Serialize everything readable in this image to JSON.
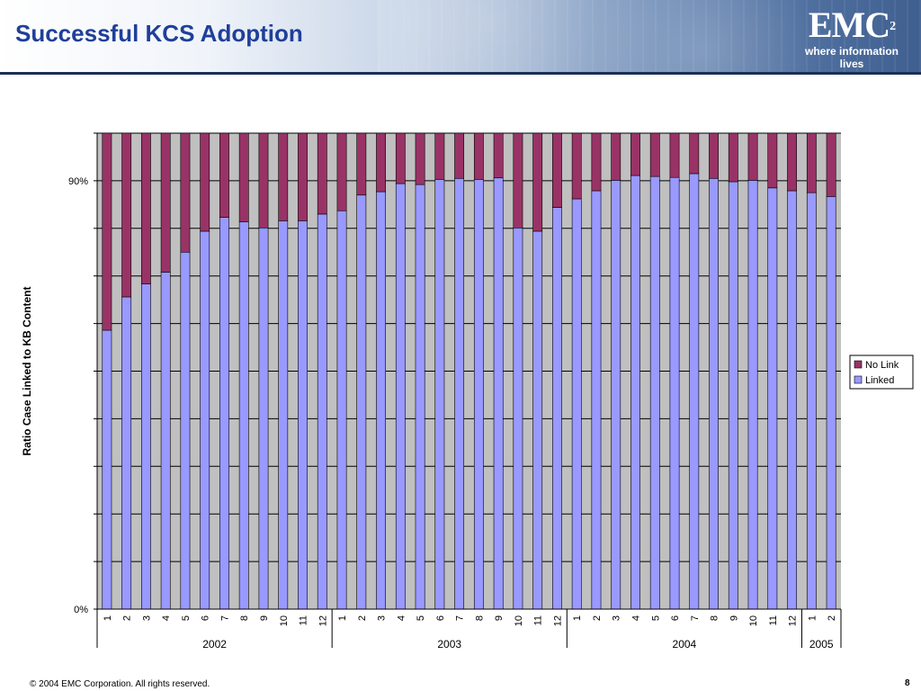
{
  "header": {
    "title": "Successful KCS Adoption",
    "logo_mark": "EMC",
    "logo_superscript": "2",
    "logo_tagline": "where information lives"
  },
  "footer": {
    "copyright": "© 2004 EMC Corporation. All rights reserved.",
    "page_number": "8"
  },
  "colors": {
    "plot_background": "#c0c0c0",
    "linked": "#9999ff",
    "no_link": "#993366",
    "header_text": "#1f3f99"
  },
  "chart_data": {
    "type": "bar",
    "stacked": true,
    "ylabel": "Ratio Case Linked to KB Content",
    "ylim": [
      0,
      100
    ],
    "y_tick_labels": [
      {
        "value": 0,
        "label": "0%"
      },
      {
        "value": 90,
        "label": "90%"
      }
    ],
    "gridlines": true,
    "legend_position": "right",
    "categories": [
      "1",
      "2",
      "3",
      "4",
      "5",
      "6",
      "7",
      "8",
      "9",
      "10",
      "11",
      "12",
      "1",
      "2",
      "3",
      "4",
      "5",
      "6",
      "7",
      "8",
      "9",
      "10",
      "11",
      "12",
      "1",
      "2",
      "3",
      "4",
      "5",
      "6",
      "7",
      "8",
      "9",
      "10",
      "11",
      "12",
      "1",
      "2"
    ],
    "year_groups": [
      {
        "label": "2002",
        "count": 12
      },
      {
        "label": "2003",
        "count": 12
      },
      {
        "label": "2004",
        "count": 12
      },
      {
        "label": "2005",
        "count": 2
      }
    ],
    "series": [
      {
        "name": "Linked",
        "color": "#9999ff",
        "values": [
          58.6,
          65.6,
          68.3,
          70.8,
          75.0,
          79.4,
          82.3,
          81.4,
          80.1,
          81.6,
          81.6,
          83.0,
          83.7,
          87.0,
          87.7,
          89.4,
          89.2,
          90.3,
          90.5,
          90.3,
          90.6,
          80.1,
          79.4,
          84.4,
          86.2,
          87.9,
          90.1,
          91.1,
          90.9,
          90.7,
          91.5,
          90.5,
          89.8,
          90.1,
          88.5,
          87.9,
          87.5,
          86.7
        ]
      },
      {
        "name": "No Link",
        "color": "#993366",
        "values": [
          41.4,
          34.4,
          31.7,
          29.2,
          25.0,
          20.6,
          17.7,
          18.6,
          19.9,
          18.4,
          18.4,
          17.0,
          16.3,
          13.0,
          12.3,
          10.6,
          10.8,
          9.7,
          9.5,
          9.7,
          9.4,
          19.9,
          20.6,
          15.6,
          13.8,
          12.1,
          9.9,
          8.9,
          9.1,
          9.3,
          8.5,
          9.5,
          10.2,
          9.9,
          11.5,
          12.1,
          12.5,
          13.3
        ]
      }
    ],
    "legend": [
      "No Link",
      "Linked"
    ]
  }
}
